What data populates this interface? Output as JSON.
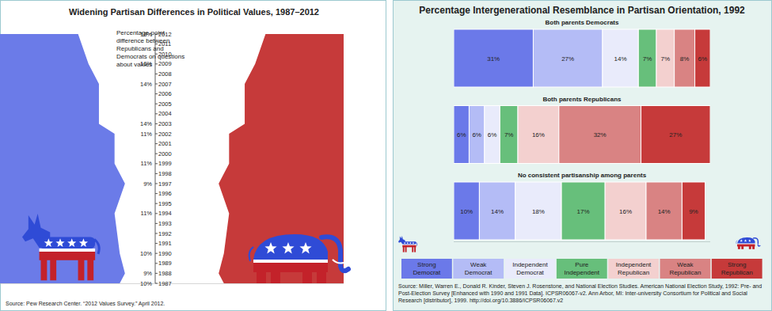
{
  "chart_data": [
    {
      "type": "area",
      "title": "Widening Partisan Differences in Political Values, 1987–2012",
      "annotation": "Percentage-point difference between Republicans and Democrats on questions about values",
      "source": "Source: Pew Research Center. “2012 Values Survey.” April 2012.",
      "x": [
        1987,
        1988,
        1990,
        1994,
        1997,
        1999,
        2002,
        2003,
        2007,
        2009,
        2012
      ],
      "values": [
        10,
        9,
        10,
        11,
        9,
        11,
        11,
        14,
        14,
        16,
        18
      ],
      "value_labels": [
        "10%",
        "9%",
        "10%",
        "11%",
        "9%",
        "11%",
        "11%",
        "14%",
        "14%",
        "16%",
        "18%"
      ],
      "xlim": [
        1987,
        2012
      ],
      "xticks": [
        1987,
        1988,
        1989,
        1990,
        1991,
        1992,
        1993,
        1994,
        1995,
        1996,
        1997,
        1998,
        1999,
        2000,
        2001,
        2002,
        2003,
        2004,
        2005,
        2006,
        2007,
        2008,
        2009,
        2010,
        2011,
        2012
      ],
      "ylim": [
        0,
        33
      ],
      "colors": [
        "#6b7be8",
        "#c63a3a"
      ],
      "data_labels": true,
      "tick_labels": "x"
    },
    {
      "type": "bar",
      "orientation": "horizontal",
      "stacked": true,
      "title": "Percentage Intergenerational Resemblance in Partisan Orientation, 1992",
      "categories": [
        "Both parents Democrats",
        "Both parents Republicans",
        "No consistent partisanship among parents"
      ],
      "series": [
        {
          "name": "Strong Democrat",
          "color": "#6b79e9",
          "values": [
            31,
            6,
            10
          ],
          "value_labels": [
            "31%",
            "6%",
            "10%"
          ]
        },
        {
          "name": "Weak Democrat",
          "color": "#b4bcf6",
          "values": [
            27,
            6,
            14
          ],
          "value_labels": [
            "27%",
            "6%",
            "14%"
          ]
        },
        {
          "name": "Independent Democrat",
          "color": "#e9ebfb",
          "values": [
            14,
            6,
            18
          ],
          "value_labels": [
            "14%",
            "6%",
            "18%"
          ]
        },
        {
          "name": "Pure Independent",
          "color": "#67bf7b",
          "values": [
            7,
            7,
            17
          ],
          "value_labels": [
            "7%",
            "7%",
            "17%"
          ]
        },
        {
          "name": "Independent Republican",
          "color": "#f3d0cf",
          "values": [
            7,
            16,
            16
          ],
          "value_labels": [
            "7%",
            "16%",
            "16%"
          ]
        },
        {
          "name": "Weak Republican",
          "color": "#d98383",
          "values": [
            8,
            32,
            14
          ],
          "value_labels": [
            "8%",
            "32%",
            "14%"
          ]
        },
        {
          "name": "Strong Republican",
          "color": "#c63a3a",
          "values": [
            6,
            27,
            9
          ],
          "value_labels": [
            "6%",
            "27%",
            "9%"
          ]
        }
      ],
      "ylim": [
        0,
        100
      ],
      "data_labels": true,
      "tick_labels": false,
      "legend": "bottom",
      "source": "Source: Miller, Warren E., Donald R. Kinder, Steven J. Rosenstone, and National Election Studies. American National Election Study, 1992: Pre- and Post-Election Survey [Enhanced with 1990 and 1991 Data]. ICPSR06067-v2. Ann Arbor, MI: Inter-university Consortium for Political and Social Research [distributor], 1999. http://doi.org/10.3886/ICPSR06067.v2"
    }
  ]
}
